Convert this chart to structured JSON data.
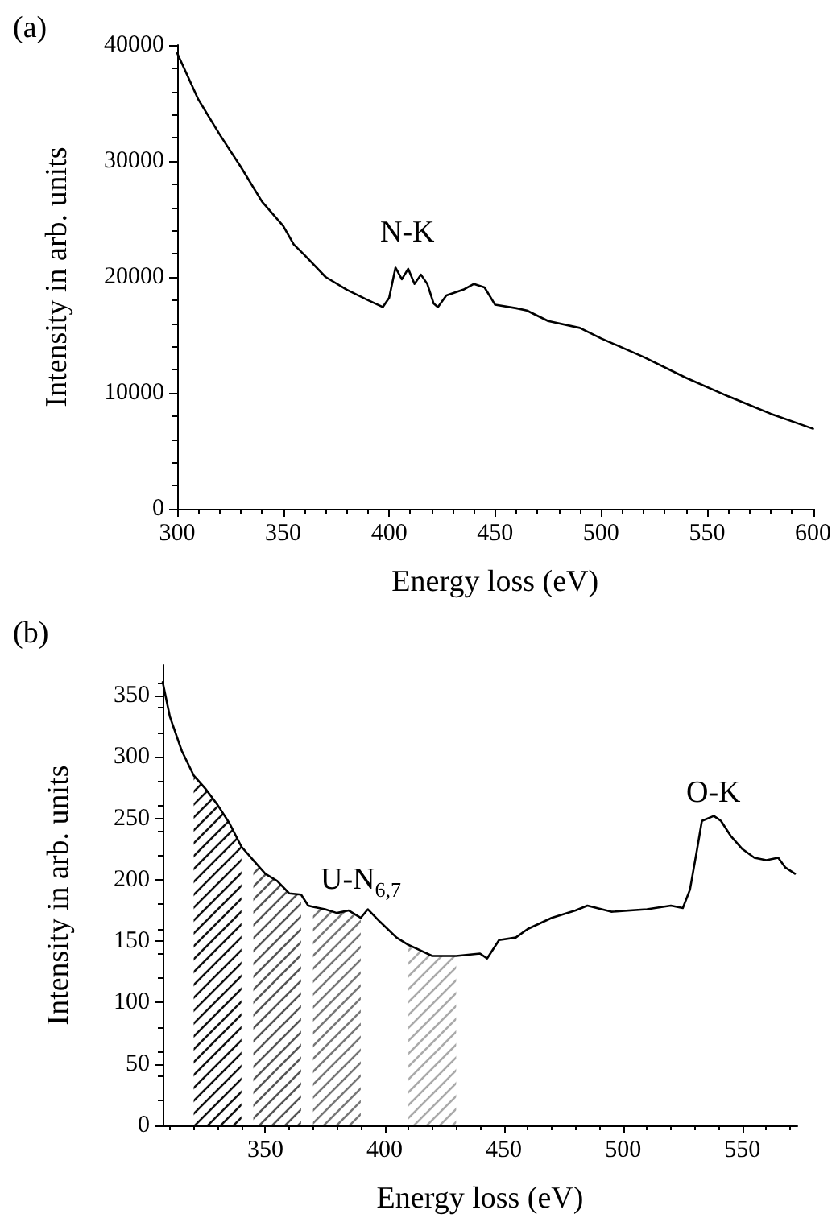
{
  "chart_data": [
    {
      "type": "line",
      "title": "(a)",
      "xlabel": "Energy loss (eV)",
      "ylabel": "Intensity in arb. units",
      "xlim": [
        300,
        600
      ],
      "ylim": [
        0,
        40000
      ],
      "xticks": [
        300,
        350,
        400,
        450,
        500,
        550,
        600
      ],
      "yticks": [
        0,
        10000,
        20000,
        30000,
        40000
      ],
      "grid": false,
      "marker": "none",
      "line_style": "solid",
      "annotations": [
        "N-K"
      ],
      "series": [
        {
          "color": "#000000",
          "x": [
            300,
            310,
            320,
            330,
            340,
            350,
            355,
            360,
            370,
            380,
            390,
            397,
            400,
            403,
            406,
            409,
            412,
            415,
            418,
            421,
            423,
            427,
            435,
            440,
            445,
            450,
            460,
            465,
            475,
            490,
            500,
            520,
            540,
            560,
            580,
            600
          ],
          "values": [
            39300,
            35300,
            32300,
            29500,
            26500,
            24400,
            22800,
            21900,
            20000,
            18900,
            18000,
            17400,
            18200,
            20800,
            19800,
            20700,
            19400,
            20200,
            19400,
            17700,
            17400,
            18400,
            18900,
            19400,
            19100,
            17600,
            17300,
            17100,
            16200,
            15600,
            14700,
            13100,
            11300,
            9700,
            8200,
            6900
          ]
        }
      ]
    },
    {
      "type": "line",
      "title": "(b)",
      "xlabel": "Energy loss (eV)",
      "ylabel": "Intensity in arb. units",
      "xlim": [
        307,
        573
      ],
      "ylim": [
        0,
        375
      ],
      "xticks": [
        350,
        400,
        450,
        500,
        550
      ],
      "yticks": [
        0,
        50,
        100,
        150,
        200,
        250,
        300,
        350
      ],
      "grid": false,
      "marker": "none",
      "line_style": "solid",
      "annotations": [
        "U-N$_{6,7}$",
        "O-K"
      ],
      "bands": [
        {
          "axis": "x",
          "from": 320,
          "to": 340,
          "color": "#111111"
        },
        {
          "axis": "x",
          "from": 345,
          "to": 365,
          "color": "#555555"
        },
        {
          "axis": "x",
          "from": 370,
          "to": 390,
          "color": "#777777"
        },
        {
          "axis": "x",
          "from": 410,
          "to": 430,
          "color": "#aaaaaa"
        }
      ],
      "series": [
        {
          "color": "#000000",
          "x": [
            307,
            310,
            315,
            320,
            325,
            330,
            335,
            340,
            345,
            350,
            355,
            360,
            365,
            368,
            370,
            375,
            380,
            385,
            390,
            393,
            398,
            405,
            410,
            420,
            430,
            440,
            443,
            448,
            455,
            460,
            470,
            480,
            485,
            495,
            510,
            520,
            525,
            528,
            531,
            533,
            538,
            541,
            545,
            550,
            555,
            560,
            565,
            568,
            572
          ],
          "values": [
            361,
            333,
            305,
            285,
            274,
            261,
            246,
            227,
            216,
            205,
            199,
            189,
            188,
            179,
            178,
            176,
            173,
            175,
            169,
            176,
            166,
            153,
            147,
            138,
            138,
            140,
            136,
            151,
            153,
            160,
            169,
            175,
            179,
            174,
            176,
            179,
            177,
            192,
            225,
            248,
            252,
            248,
            236,
            225,
            218,
            216,
            218,
            210,
            205
          ]
        }
      ]
    }
  ]
}
